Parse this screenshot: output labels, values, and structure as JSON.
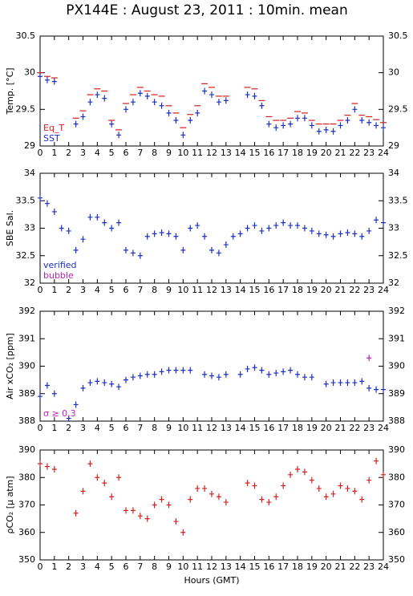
{
  "chart_data": [
    {
      "type": "scatter",
      "title": "PX144E : August 23, 2011 : 10min. mean",
      "ylabel": "Temp. [°C]",
      "xlim": [
        0,
        24
      ],
      "xticks": [
        0,
        1,
        2,
        3,
        4,
        5,
        6,
        7,
        8,
        9,
        10,
        11,
        12,
        13,
        14,
        15,
        16,
        17,
        18,
        19,
        20,
        21,
        22,
        23,
        24
      ],
      "ylim": [
        29,
        30.5
      ],
      "yticks": [
        29,
        29.5,
        30,
        30.5
      ],
      "legend": "lower left",
      "x": [
        0,
        0.5,
        1,
        1.5,
        2,
        2.5,
        3,
        3.5,
        4,
        4.5,
        5,
        5.5,
        6,
        6.5,
        7,
        7.5,
        8,
        8.5,
        9,
        9.5,
        10,
        10.5,
        11,
        11.5,
        12,
        12.5,
        13,
        13.5,
        14,
        14.5,
        15,
        15.5,
        16,
        16.5,
        17,
        17.5,
        18,
        18.5,
        19,
        19.5,
        20,
        20.5,
        21,
        21.5,
        22,
        22.5,
        23,
        23.5,
        24
      ],
      "series": [
        {
          "name": "Eq_T",
          "color": "#d42020",
          "marker": "hline",
          "values": [
            30.0,
            29.95,
            29.93,
            null,
            null,
            29.38,
            29.48,
            29.7,
            29.78,
            29.75,
            29.35,
            29.22,
            29.58,
            29.7,
            29.8,
            29.75,
            29.7,
            29.68,
            29.55,
            29.45,
            29.25,
            29.43,
            29.55,
            29.85,
            29.8,
            29.68,
            29.68,
            null,
            null,
            29.8,
            29.78,
            29.62,
            29.4,
            29.35,
            29.35,
            29.38,
            29.47,
            29.45,
            29.35,
            29.3,
            29.3,
            29.3,
            29.35,
            29.42,
            29.58,
            29.42,
            29.4,
            29.36,
            29.32
          ]
        },
        {
          "name": "SST",
          "color": "#1c2fc4",
          "marker": "plus",
          "values": [
            29.95,
            29.9,
            29.88,
            null,
            null,
            29.3,
            29.4,
            29.6,
            29.7,
            29.65,
            29.3,
            29.15,
            29.5,
            29.6,
            29.72,
            29.68,
            29.6,
            29.55,
            29.45,
            29.35,
            29.15,
            29.35,
            29.45,
            29.75,
            29.7,
            29.6,
            29.62,
            null,
            null,
            29.7,
            29.68,
            29.55,
            29.3,
            29.25,
            29.28,
            29.3,
            29.38,
            29.38,
            29.28,
            29.2,
            29.22,
            29.2,
            29.28,
            29.35,
            29.5,
            29.35,
            29.32,
            29.28,
            29.25
          ]
        }
      ]
    },
    {
      "type": "scatter",
      "ylabel": "SBE Sal.",
      "xlim": [
        0,
        24
      ],
      "xticks": [
        0,
        1,
        2,
        3,
        4,
        5,
        6,
        7,
        8,
        9,
        10,
        11,
        12,
        13,
        14,
        15,
        16,
        17,
        18,
        19,
        20,
        21,
        22,
        23,
        24
      ],
      "ylim": [
        32,
        34
      ],
      "yticks": [
        32,
        32.5,
        33,
        33.5,
        34
      ],
      "legend": "lower left",
      "x": [
        0,
        0.5,
        1,
        1.5,
        2,
        2.5,
        3,
        3.5,
        4,
        4.5,
        5,
        5.5,
        6,
        6.5,
        7,
        7.5,
        8,
        8.5,
        9,
        9.5,
        10,
        10.5,
        11,
        11.5,
        12,
        12.5,
        13,
        13.5,
        14,
        14.5,
        15,
        15.5,
        16,
        16.5,
        17,
        17.5,
        18,
        18.5,
        19,
        19.5,
        20,
        20.5,
        21,
        21.5,
        22,
        22.5,
        23,
        23.5,
        24
      ],
      "series": [
        {
          "name": "verified",
          "color": "#1c2fc4",
          "marker": "plus",
          "values": [
            33.55,
            33.45,
            33.3,
            33.0,
            32.95,
            32.6,
            32.8,
            33.2,
            33.2,
            33.1,
            33.0,
            33.1,
            32.6,
            32.55,
            32.5,
            32.85,
            32.9,
            32.92,
            32.9,
            32.85,
            32.6,
            33.0,
            33.05,
            32.85,
            32.6,
            32.55,
            32.7,
            32.85,
            32.9,
            33.0,
            33.05,
            32.95,
            33.0,
            33.05,
            33.1,
            33.05,
            33.05,
            33.0,
            32.95,
            32.9,
            32.88,
            32.85,
            32.9,
            32.92,
            32.9,
            32.85,
            32.95,
            33.15,
            33.1
          ]
        },
        {
          "name": "bubble",
          "color": "#c020c0",
          "marker": "plus",
          "values": [
            null,
            null,
            null,
            null,
            null,
            null,
            null,
            null,
            null,
            null,
            null,
            null,
            null,
            null,
            null,
            null,
            null,
            null,
            null,
            null,
            null,
            null,
            null,
            null,
            null,
            null,
            null,
            null,
            null,
            null,
            null,
            null,
            null,
            null,
            null,
            null,
            null,
            null,
            null,
            null,
            null,
            null,
            null,
            null,
            null,
            null,
            null,
            null,
            null
          ]
        }
      ]
    },
    {
      "type": "scatter",
      "ylabel": "Air xCO₂ [ppm]",
      "xlim": [
        0,
        24
      ],
      "xticks": [
        0,
        1,
        2,
        3,
        4,
        5,
        6,
        7,
        8,
        9,
        10,
        11,
        12,
        13,
        14,
        15,
        16,
        17,
        18,
        19,
        20,
        21,
        22,
        23,
        24
      ],
      "ylim": [
        388,
        392
      ],
      "yticks": [
        388,
        389,
        390,
        391,
        392
      ],
      "legend": "lower left",
      "x": [
        0,
        0.5,
        1,
        1.5,
        2,
        2.5,
        3,
        3.5,
        4,
        4.5,
        5,
        5.5,
        6,
        6.5,
        7,
        7.5,
        8,
        8.5,
        9,
        9.5,
        10,
        10.5,
        11,
        11.5,
        12,
        12.5,
        13,
        13.5,
        14,
        14.5,
        15,
        15.5,
        16,
        16.5,
        17,
        17.5,
        18,
        18.5,
        19,
        19.5,
        20,
        20.5,
        21,
        21.5,
        22,
        22.5,
        23,
        23.5,
        24
      ],
      "series": [
        {
          "color": "#1c2fc4",
          "marker": "plus",
          "values": [
            388.9,
            389.3,
            389.0,
            null,
            388.1,
            388.6,
            389.2,
            389.4,
            389.45,
            389.4,
            389.35,
            389.25,
            389.5,
            389.6,
            389.65,
            389.7,
            389.7,
            389.8,
            389.85,
            389.85,
            389.85,
            389.85,
            null,
            389.7,
            389.65,
            389.6,
            389.7,
            null,
            389.7,
            389.9,
            389.95,
            389.85,
            389.7,
            389.75,
            389.8,
            389.85,
            389.7,
            389.6,
            389.6,
            null,
            389.35,
            389.4,
            389.4,
            389.4,
            389.4,
            389.45,
            389.2,
            389.15,
            389.15
          ]
        },
        {
          "name": "σ ≥ 0.3",
          "color": "#c020c0",
          "marker": "plus",
          "values": [
            null,
            null,
            null,
            null,
            null,
            null,
            null,
            null,
            null,
            null,
            null,
            null,
            null,
            null,
            null,
            null,
            null,
            null,
            null,
            null,
            null,
            null,
            null,
            null,
            null,
            null,
            null,
            null,
            null,
            null,
            null,
            null,
            null,
            null,
            null,
            null,
            null,
            null,
            null,
            null,
            null,
            null,
            null,
            null,
            null,
            null,
            390.3,
            null,
            null
          ]
        }
      ]
    },
    {
      "type": "scatter",
      "ylabel": "ρCO₂ [μ atm]",
      "xlabel": "Hours (GMT)",
      "xlim": [
        0,
        24
      ],
      "xticks": [
        0,
        1,
        2,
        3,
        4,
        5,
        6,
        7,
        8,
        9,
        10,
        11,
        12,
        13,
        14,
        15,
        16,
        17,
        18,
        19,
        20,
        21,
        22,
        23,
        24
      ],
      "ylim": [
        350,
        390
      ],
      "yticks": [
        350,
        360,
        370,
        380,
        390
      ],
      "x": [
        0,
        0.5,
        1,
        1.5,
        2,
        2.5,
        3,
        3.5,
        4,
        4.5,
        5,
        5.5,
        6,
        6.5,
        7,
        7.5,
        8,
        8.5,
        9,
        9.5,
        10,
        10.5,
        11,
        11.5,
        12,
        12.5,
        13,
        13.5,
        14,
        14.5,
        15,
        15.5,
        16,
        16.5,
        17,
        17.5,
        18,
        18.5,
        19,
        19.5,
        20,
        20.5,
        21,
        21.5,
        22,
        22.5,
        23,
        23.5,
        24
      ],
      "series": [
        {
          "color": "#d42020",
          "marker": "plus",
          "values": [
            385,
            384,
            383,
            null,
            null,
            367,
            375,
            385,
            380,
            378,
            373,
            380,
            368,
            368,
            366,
            365,
            370,
            372,
            370,
            364,
            360,
            372,
            376,
            376,
            374,
            373,
            371,
            null,
            null,
            378,
            377,
            372,
            371,
            373,
            377,
            381,
            383,
            382,
            379,
            376,
            373,
            374,
            377,
            376,
            375,
            372,
            379,
            386,
            381
          ]
        }
      ]
    }
  ]
}
